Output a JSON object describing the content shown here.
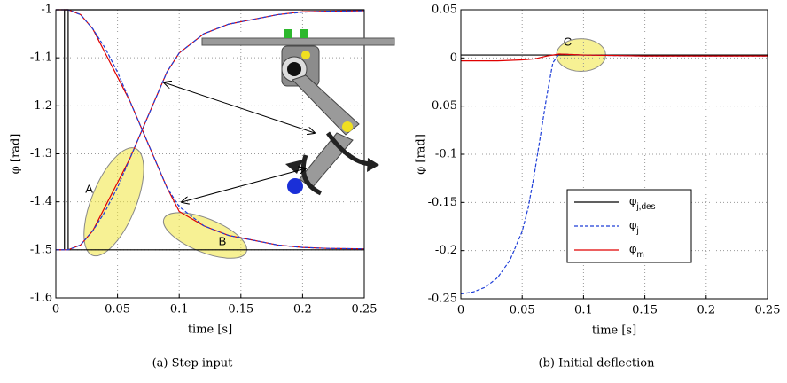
{
  "chart_data": [
    {
      "type": "line",
      "xlabel": "time [s]",
      "ylabel": "φ [rad]",
      "caption": "(a) Step input",
      "xlim": [
        0,
        0.25
      ],
      "ylim": [
        -1.6,
        -1
      ],
      "xticks": [
        0,
        0.05,
        0.1,
        0.15,
        0.2,
        0.25
      ],
      "yticks": [
        -1.6,
        -1.5,
        -1.4,
        -1.3,
        -1.2,
        -1.1,
        -1
      ],
      "grid": true,
      "annotations": [
        "A",
        "B"
      ],
      "series": [
        {
          "color": "#000000",
          "dash": false,
          "x": [
            0,
            0.007,
            0.007,
            0.25
          ],
          "values": [
            -1.5,
            -1.5,
            -1,
            -1
          ]
        },
        {
          "color": "#000000",
          "dash": false,
          "x": [
            0,
            0.01,
            0.01,
            0.25
          ],
          "values": [
            -1,
            -1,
            -1.5,
            -1.5
          ]
        },
        {
          "color": "#e00000",
          "dash": false,
          "x": [
            0,
            0.01,
            0.02,
            0.03,
            0.04,
            0.05,
            0.06,
            0.07,
            0.08,
            0.09,
            0.1,
            0.12,
            0.14,
            0.16,
            0.18,
            0.2,
            0.22,
            0.25
          ],
          "values": [
            -1.5,
            -1.5,
            -1.49,
            -1.46,
            -1.41,
            -1.36,
            -1.31,
            -1.25,
            -1.19,
            -1.13,
            -1.09,
            -1.05,
            -1.03,
            -1.02,
            -1.01,
            -1.004,
            -1.003,
            -1.002
          ]
        },
        {
          "color": "#1f3fd8",
          "dash": true,
          "x": [
            0,
            0.01,
            0.02,
            0.03,
            0.04,
            0.05,
            0.06,
            0.07,
            0.08,
            0.09,
            0.1,
            0.12,
            0.14,
            0.16,
            0.18,
            0.2,
            0.22,
            0.25
          ],
          "values": [
            -1.5,
            -1.5,
            -1.49,
            -1.46,
            -1.42,
            -1.37,
            -1.31,
            -1.25,
            -1.19,
            -1.13,
            -1.09,
            -1.05,
            -1.03,
            -1.02,
            -1.01,
            -1.005,
            -1.003,
            -1.002
          ]
        },
        {
          "color": "#e00000",
          "dash": false,
          "x": [
            0,
            0.01,
            0.02,
            0.03,
            0.04,
            0.05,
            0.06,
            0.07,
            0.08,
            0.09,
            0.1,
            0.12,
            0.14,
            0.16,
            0.18,
            0.2,
            0.22,
            0.25
          ],
          "values": [
            -1,
            -1,
            -1.01,
            -1.04,
            -1.09,
            -1.14,
            -1.19,
            -1.25,
            -1.31,
            -1.37,
            -1.42,
            -1.45,
            -1.47,
            -1.48,
            -1.49,
            -1.495,
            -1.497,
            -1.498
          ]
        },
        {
          "color": "#1f3fd8",
          "dash": true,
          "x": [
            0,
            0.01,
            0.02,
            0.03,
            0.04,
            0.05,
            0.06,
            0.07,
            0.08,
            0.09,
            0.1,
            0.12,
            0.14,
            0.16,
            0.18,
            0.2,
            0.22,
            0.25
          ],
          "values": [
            -1,
            -1,
            -1.01,
            -1.04,
            -1.08,
            -1.13,
            -1.19,
            -1.25,
            -1.31,
            -1.37,
            -1.41,
            -1.45,
            -1.47,
            -1.48,
            -1.49,
            -1.495,
            -1.497,
            -1.498
          ]
        }
      ]
    },
    {
      "type": "line",
      "xlabel": "time [s]",
      "ylabel": "φ [rad]",
      "caption": "(b) Initial deflection",
      "xlim": [
        0,
        0.25
      ],
      "ylim": [
        -0.25,
        0.05
      ],
      "xticks": [
        0,
        0.05,
        0.1,
        0.15,
        0.2,
        0.25
      ],
      "yticks": [
        -0.25,
        -0.2,
        -0.15,
        -0.1,
        -0.05,
        0,
        0.05
      ],
      "grid": true,
      "annotations": [
        "C"
      ],
      "legend": "lower-center",
      "series": [
        {
          "name": "φ",
          "subscript": "j,des",
          "color": "#000000",
          "dash": false,
          "x": [
            0,
            0.25
          ],
          "values": [
            0.003,
            0.003
          ]
        },
        {
          "name": "φ",
          "subscript": "j",
          "color": "#1f3fd8",
          "dash": true,
          "x": [
            0,
            0.01,
            0.02,
            0.03,
            0.04,
            0.05,
            0.055,
            0.06,
            0.065,
            0.07,
            0.075,
            0.08,
            0.1,
            0.15,
            0.2,
            0.25
          ],
          "values": [
            -0.245,
            -0.243,
            -0.238,
            -0.228,
            -0.21,
            -0.18,
            -0.155,
            -0.12,
            -0.08,
            -0.04,
            -0.005,
            0.004,
            0.003,
            0.002,
            0.002,
            0.002
          ]
        },
        {
          "name": "φ",
          "subscript": "m",
          "color": "#e00000",
          "dash": false,
          "x": [
            0,
            0.03,
            0.05,
            0.06,
            0.07,
            0.08,
            0.1,
            0.15,
            0.2,
            0.25
          ],
          "values": [
            -0.003,
            -0.003,
            -0.002,
            -0.001,
            0.002,
            0.004,
            0.003,
            0.002,
            0.002,
            0.002
          ]
        }
      ]
    }
  ]
}
